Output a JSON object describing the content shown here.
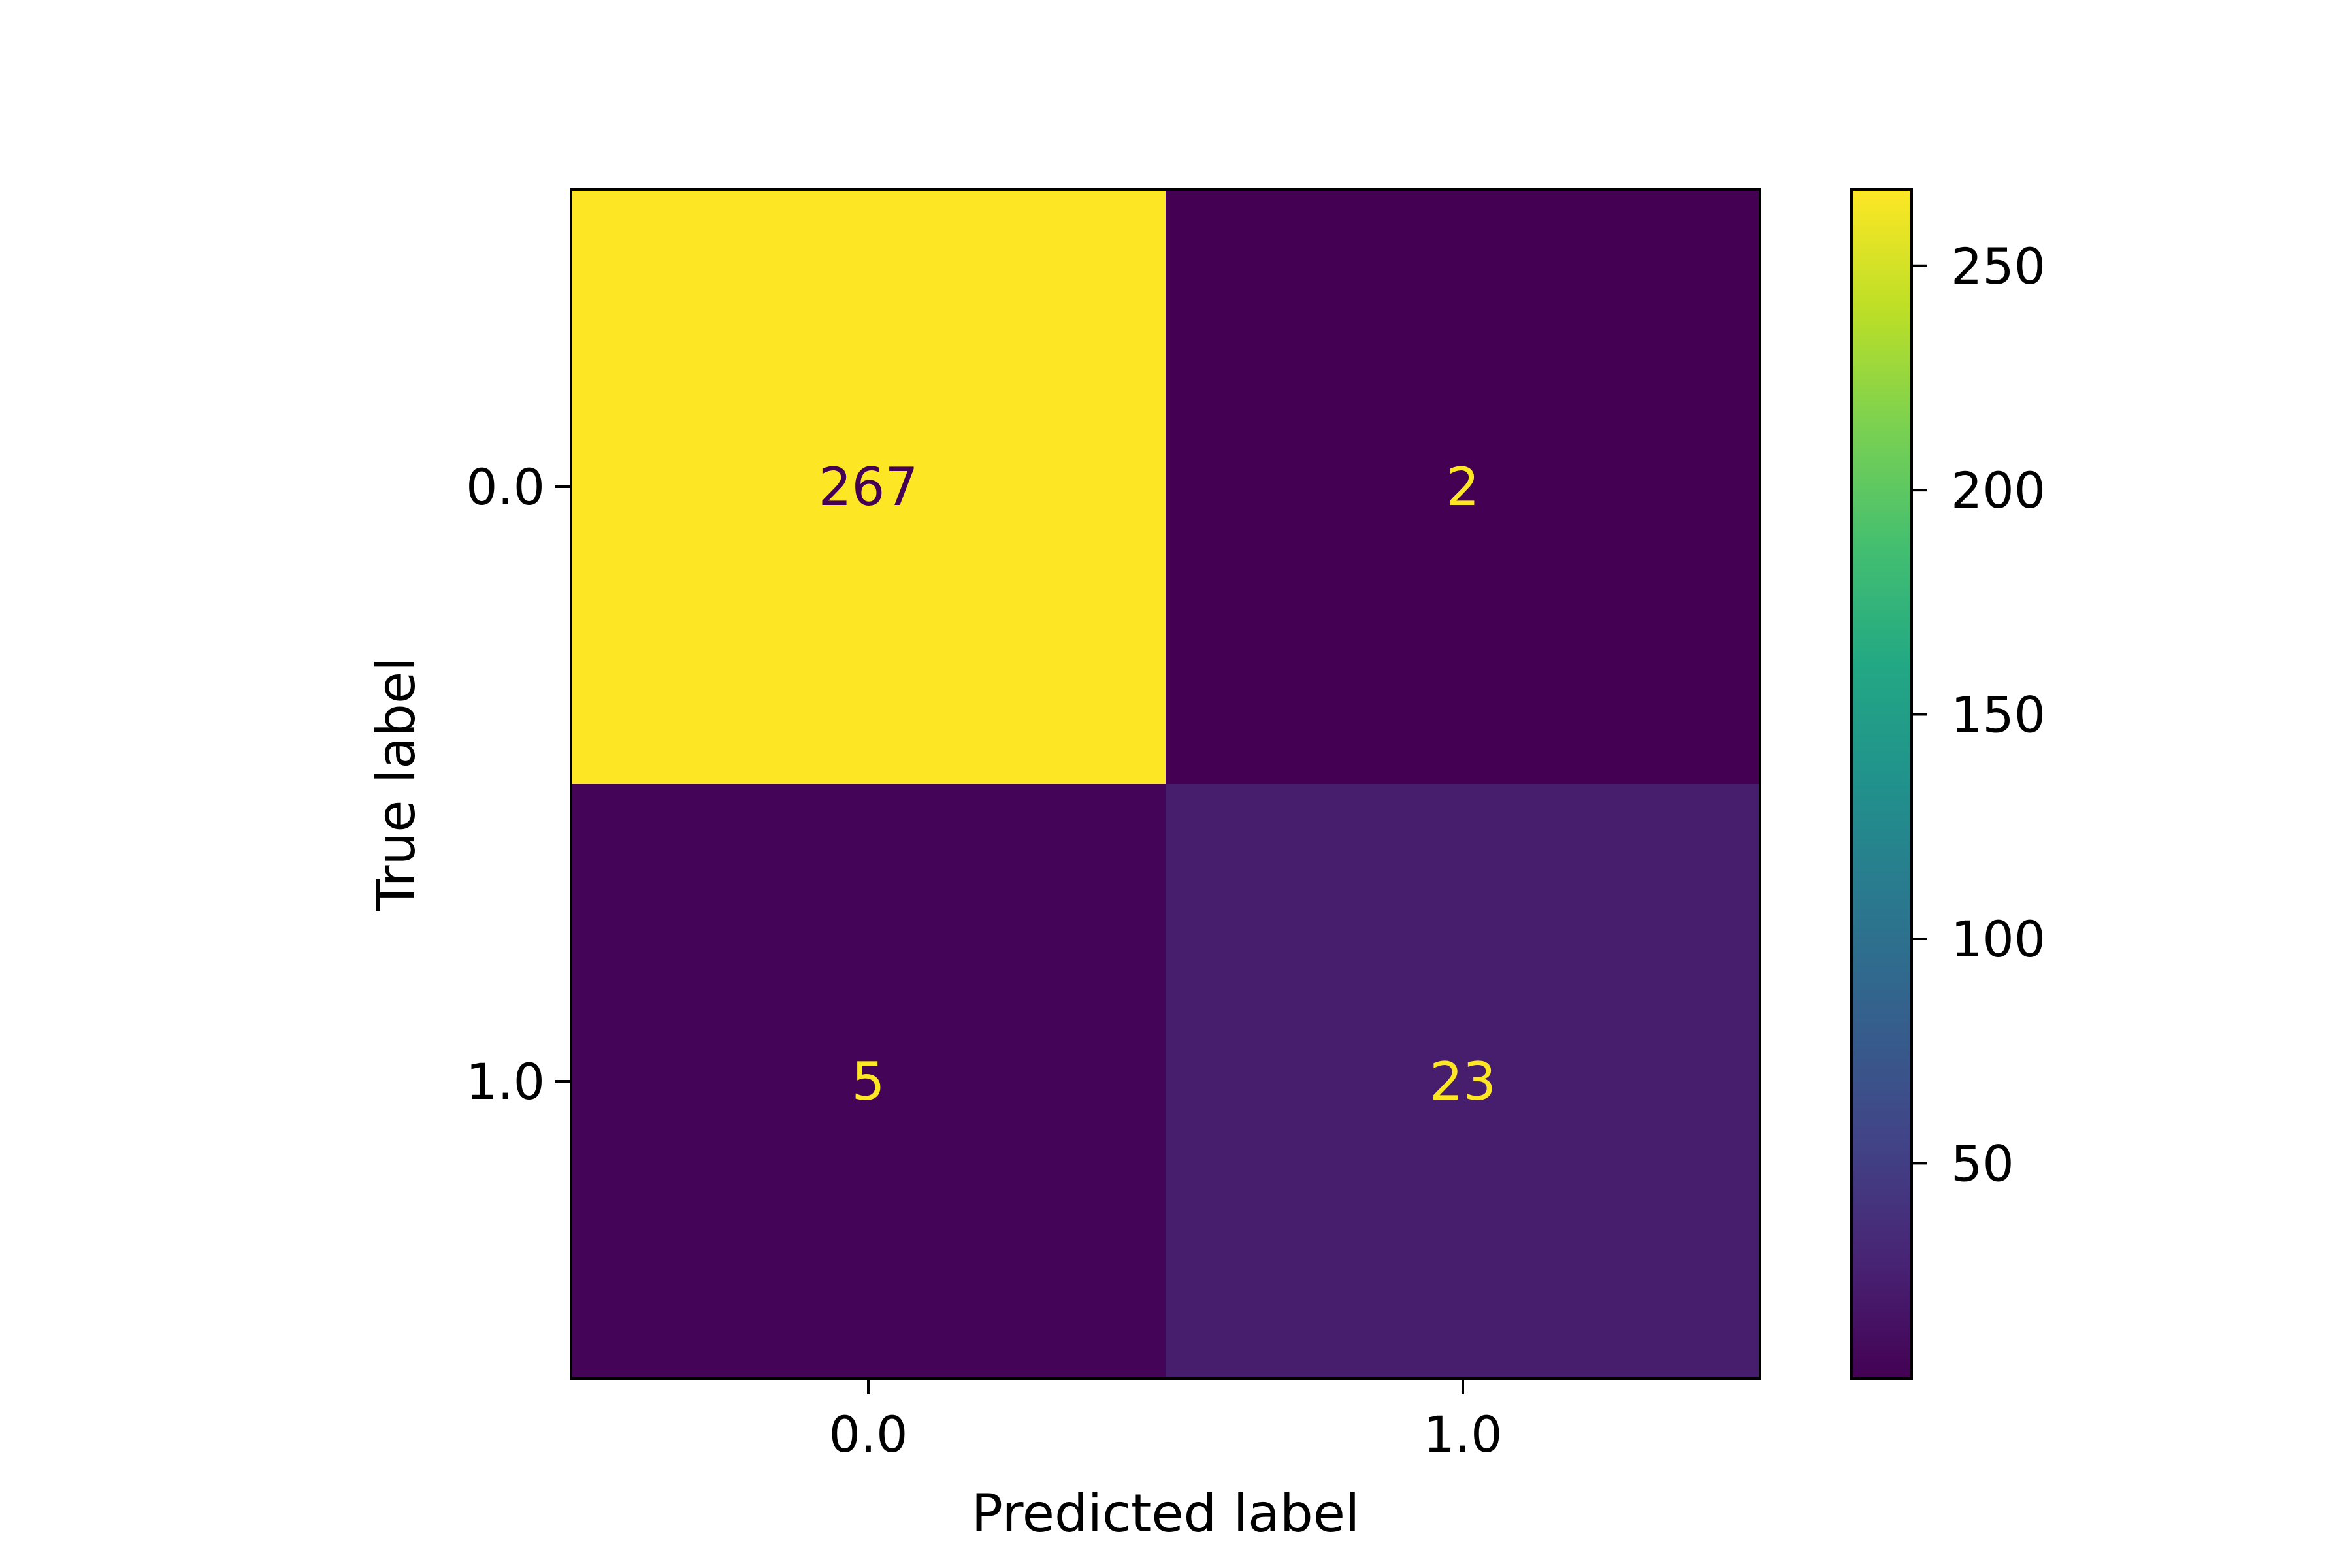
{
  "chart_data": {
    "type": "heatmap",
    "title": "",
    "xlabel": "Predicted label",
    "ylabel": "True label",
    "x_categories": [
      "0.0",
      "1.0"
    ],
    "y_categories": [
      "0.0",
      "1.0"
    ],
    "matrix": [
      [
        267,
        2
      ],
      [
        5,
        23
      ]
    ],
    "colormap": "viridis",
    "colorbar": {
      "range": [
        2,
        267
      ],
      "ticks": [
        50,
        100,
        150,
        200,
        250
      ],
      "tick_labels": [
        "50",
        "100",
        "150",
        "200",
        "250"
      ]
    },
    "text_colors": {
      "on_dark": "#fde725",
      "on_light": "#440154"
    },
    "grid": false,
    "legend": "colorbar-right"
  }
}
